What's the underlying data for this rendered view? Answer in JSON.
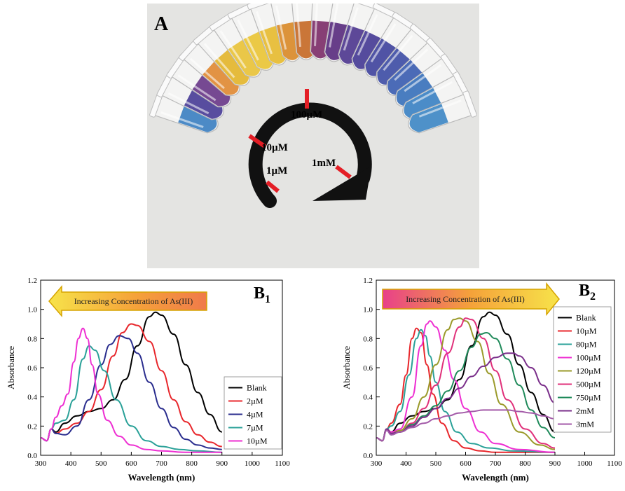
{
  "photo": {
    "panel_label": "A",
    "concentration_labels": [
      "100µM",
      "10µM",
      "1µM",
      "1mM"
    ],
    "tube_colors": [
      "#3d80c2",
      "#4a3e98",
      "#6a3a8a",
      "#e08a35",
      "#e3b52e",
      "#e8c23a",
      "#e9c437",
      "#e6bb32",
      "#d98a2a",
      "#c56a28",
      "#7d2f6a",
      "#5a2e80",
      "#4f3890",
      "#463c96",
      "#41449e",
      "#3f4ea6",
      "#3c5eb2",
      "#3a72bc",
      "#3c82c4",
      "#3f88c6"
    ],
    "arrow_color": "#111111",
    "marker_color": "#e41e26"
  },
  "chart_data": [
    {
      "type": "line",
      "panel_label": "B",
      "panel_subscript": "1",
      "xlabel": "Wavelength (nm)",
      "ylabel": "Absorbance",
      "xlim": [
        300,
        1100
      ],
      "ylim": [
        0,
        1.2
      ],
      "xticks": [
        300,
        400,
        500,
        600,
        700,
        800,
        900,
        1000,
        1100
      ],
      "yticks": [
        0.0,
        0.2,
        0.4,
        0.6,
        0.8,
        1.0,
        1.2
      ],
      "banner_text": "Increasing Concentration of As(III)",
      "banner_direction": "left",
      "legend_position": "lower-right",
      "series": [
        {
          "name": "Blank",
          "color": "#000000",
          "x": [
            300,
            320,
            335,
            350,
            380,
            420,
            460,
            500,
            540,
            580,
            620,
            660,
            680,
            700,
            740,
            780,
            820,
            860,
            900
          ],
          "y": [
            0.12,
            0.1,
            0.18,
            0.16,
            0.22,
            0.27,
            0.3,
            0.32,
            0.38,
            0.52,
            0.75,
            0.95,
            0.98,
            0.96,
            0.83,
            0.62,
            0.43,
            0.28,
            0.16
          ]
        },
        {
          "name": "2µM",
          "color": "#e8272c",
          "x": [
            300,
            320,
            335,
            350,
            380,
            420,
            460,
            500,
            540,
            570,
            600,
            620,
            660,
            700,
            740,
            780,
            820,
            860,
            900
          ],
          "y": [
            0.12,
            0.1,
            0.18,
            0.15,
            0.18,
            0.22,
            0.3,
            0.45,
            0.68,
            0.84,
            0.9,
            0.89,
            0.78,
            0.58,
            0.38,
            0.23,
            0.14,
            0.09,
            0.06
          ]
        },
        {
          "name": "4µM",
          "color": "#2a2d8e",
          "x": [
            300,
            320,
            335,
            350,
            380,
            420,
            460,
            500,
            530,
            560,
            590,
            620,
            660,
            700,
            740,
            780,
            820,
            860,
            900
          ],
          "y": [
            0.12,
            0.1,
            0.18,
            0.15,
            0.14,
            0.2,
            0.38,
            0.62,
            0.76,
            0.82,
            0.8,
            0.7,
            0.5,
            0.32,
            0.19,
            0.11,
            0.07,
            0.05,
            0.04
          ]
        },
        {
          "name": "7µM",
          "color": "#2aa198",
          "x": [
            300,
            320,
            335,
            350,
            380,
            410,
            440,
            460,
            480,
            510,
            550,
            600,
            650,
            700,
            760,
            820,
            900
          ],
          "y": [
            0.12,
            0.1,
            0.18,
            0.22,
            0.24,
            0.38,
            0.66,
            0.75,
            0.72,
            0.58,
            0.38,
            0.2,
            0.1,
            0.06,
            0.04,
            0.03,
            0.02
          ]
        },
        {
          "name": "10µM",
          "color": "#ee2fd2",
          "x": [
            300,
            320,
            335,
            350,
            370,
            390,
            410,
            425,
            440,
            455,
            470,
            490,
            520,
            560,
            600,
            650,
            700,
            780,
            900
          ],
          "y": [
            0.12,
            0.1,
            0.18,
            0.26,
            0.34,
            0.42,
            0.64,
            0.8,
            0.87,
            0.8,
            0.62,
            0.42,
            0.24,
            0.13,
            0.07,
            0.04,
            0.03,
            0.02,
            0.02
          ]
        }
      ]
    },
    {
      "type": "line",
      "panel_label": "B",
      "panel_subscript": "2",
      "xlabel": "Wavelength (nm)",
      "ylabel": "Absorbance",
      "xlim": [
        300,
        1100
      ],
      "ylim": [
        0,
        1.2
      ],
      "xticks": [
        300,
        400,
        500,
        600,
        700,
        800,
        900,
        1000,
        1100
      ],
      "yticks": [
        0.0,
        0.2,
        0.4,
        0.6,
        0.8,
        1.0,
        1.2
      ],
      "banner_text": "Increasing Concentration of As(III)",
      "banner_direction": "right",
      "legend_position": "right",
      "series": [
        {
          "name": "Blank",
          "color": "#000000",
          "x": [
            300,
            320,
            335,
            350,
            380,
            420,
            460,
            500,
            540,
            580,
            620,
            660,
            680,
            700,
            740,
            780,
            820,
            860,
            900
          ],
          "y": [
            0.12,
            0.1,
            0.18,
            0.16,
            0.22,
            0.27,
            0.3,
            0.32,
            0.38,
            0.52,
            0.75,
            0.95,
            0.98,
            0.96,
            0.83,
            0.62,
            0.43,
            0.28,
            0.16
          ]
        },
        {
          "name": "10µM",
          "color": "#e8272c",
          "x": [
            300,
            320,
            335,
            350,
            380,
            400,
            420,
            435,
            450,
            470,
            490,
            520,
            560,
            600,
            650,
            700,
            800,
            900
          ],
          "y": [
            0.12,
            0.1,
            0.18,
            0.22,
            0.35,
            0.55,
            0.8,
            0.87,
            0.84,
            0.62,
            0.42,
            0.22,
            0.1,
            0.05,
            0.03,
            0.02,
            0.02,
            0.02
          ]
        },
        {
          "name": "80µM",
          "color": "#2aa198",
          "x": [
            300,
            320,
            335,
            350,
            380,
            410,
            435,
            450,
            465,
            480,
            500,
            530,
            570,
            620,
            680,
            760,
            900
          ],
          "y": [
            0.12,
            0.1,
            0.18,
            0.2,
            0.3,
            0.55,
            0.8,
            0.86,
            0.82,
            0.68,
            0.5,
            0.3,
            0.16,
            0.08,
            0.05,
            0.03,
            0.02
          ]
        },
        {
          "name": "100µM",
          "color": "#ee2fd2",
          "x": [
            300,
            320,
            335,
            350,
            380,
            420,
            450,
            470,
            480,
            500,
            530,
            560,
            600,
            650,
            700,
            780,
            900
          ],
          "y": [
            0.12,
            0.1,
            0.18,
            0.16,
            0.18,
            0.4,
            0.75,
            0.9,
            0.92,
            0.88,
            0.72,
            0.52,
            0.32,
            0.16,
            0.08,
            0.04,
            0.02
          ]
        },
        {
          "name": "120µM",
          "color": "#9a9a2a",
          "x": [
            300,
            320,
            335,
            350,
            380,
            420,
            460,
            500,
            540,
            560,
            580,
            600,
            640,
            680,
            720,
            780,
            850,
            900
          ],
          "y": [
            0.12,
            0.1,
            0.18,
            0.15,
            0.17,
            0.25,
            0.4,
            0.62,
            0.86,
            0.93,
            0.94,
            0.92,
            0.78,
            0.56,
            0.35,
            0.16,
            0.07,
            0.04
          ]
        },
        {
          "name": "500µM",
          "color": "#e0307a",
          "x": [
            300,
            320,
            335,
            350,
            380,
            420,
            460,
            500,
            540,
            580,
            600,
            620,
            660,
            700,
            740,
            800,
            860,
            900
          ],
          "y": [
            0.12,
            0.1,
            0.18,
            0.15,
            0.16,
            0.22,
            0.32,
            0.48,
            0.7,
            0.88,
            0.94,
            0.93,
            0.8,
            0.58,
            0.38,
            0.18,
            0.08,
            0.05
          ]
        },
        {
          "name": "750µM",
          "color": "#1f8a5a",
          "x": [
            300,
            320,
            335,
            350,
            380,
            420,
            460,
            500,
            540,
            580,
            620,
            650,
            670,
            700,
            740,
            780,
            820,
            860,
            900
          ],
          "y": [
            0.12,
            0.1,
            0.18,
            0.14,
            0.16,
            0.21,
            0.27,
            0.34,
            0.44,
            0.58,
            0.74,
            0.83,
            0.84,
            0.8,
            0.66,
            0.48,
            0.31,
            0.19,
            0.12
          ]
        },
        {
          "name": "2mM",
          "color": "#7a2e8a",
          "x": [
            300,
            320,
            335,
            350,
            380,
            420,
            460,
            500,
            540,
            580,
            620,
            660,
            700,
            740,
            760,
            780,
            820,
            860,
            900
          ],
          "y": [
            0.12,
            0.1,
            0.18,
            0.15,
            0.16,
            0.2,
            0.26,
            0.32,
            0.39,
            0.46,
            0.54,
            0.61,
            0.67,
            0.7,
            0.7,
            0.68,
            0.6,
            0.48,
            0.36
          ]
        },
        {
          "name": "3mM",
          "color": "#a35aa8",
          "x": [
            300,
            320,
            335,
            350,
            380,
            420,
            460,
            500,
            540,
            580,
            620,
            660,
            700,
            740,
            780,
            820,
            860,
            900
          ],
          "y": [
            0.12,
            0.1,
            0.17,
            0.14,
            0.16,
            0.19,
            0.22,
            0.25,
            0.27,
            0.29,
            0.3,
            0.31,
            0.31,
            0.31,
            0.3,
            0.29,
            0.27,
            0.25
          ]
        }
      ]
    }
  ]
}
